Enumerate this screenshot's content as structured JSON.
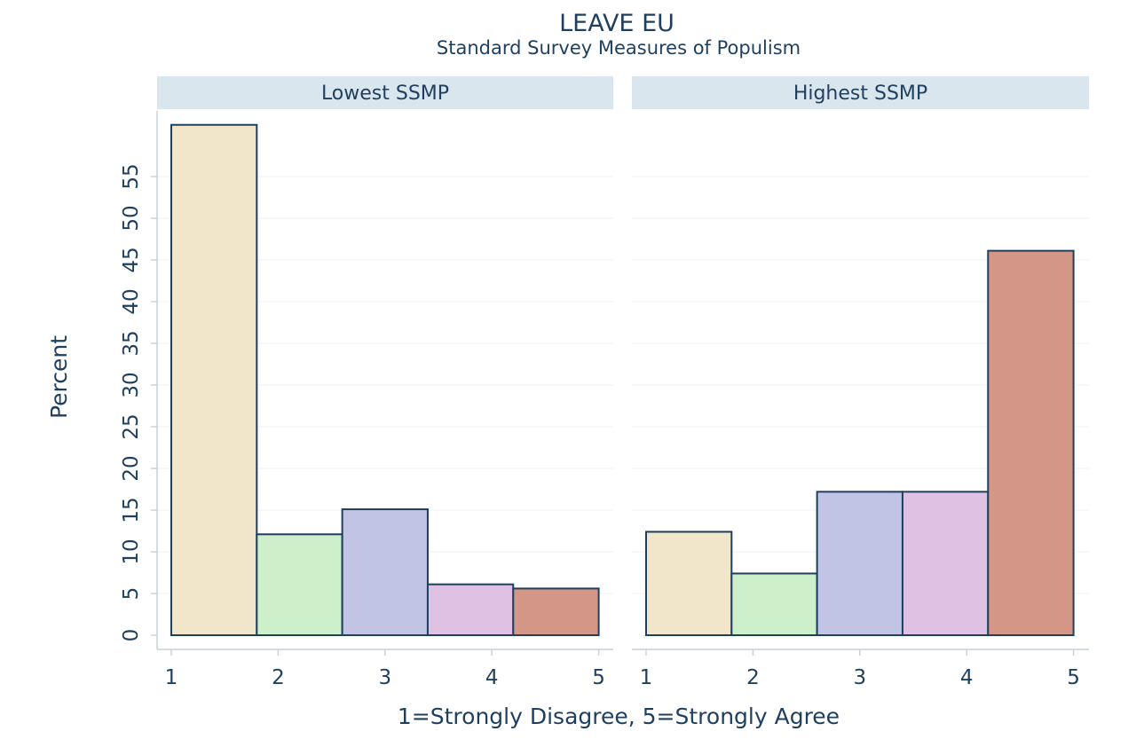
{
  "chart_data": {
    "type": "bar",
    "title": "LEAVE EU",
    "subtitle": "Standard Survey Measures of Populism",
    "xlabel": "1=Strongly Disagree, 5=Strongly Agree",
    "ylabel": "Percent",
    "ylim": [
      0,
      62
    ],
    "yticks": [
      0,
      5,
      10,
      15,
      20,
      25,
      30,
      35,
      40,
      45,
      50,
      55
    ],
    "xticks": [
      1,
      2,
      3,
      4,
      5
    ],
    "grid": true,
    "bar_colors": [
      "#f1e6c9",
      "#cdf0cb",
      "#c1c4e4",
      "#dfc1e3",
      "#d49686"
    ],
    "bar_edge_color": "#1f3f5f",
    "panel_header_color": "#d9e6ee",
    "panels": [
      {
        "name": "Lowest SSMP",
        "values": [
          61.2,
          12.1,
          15.1,
          6.1,
          5.6
        ]
      },
      {
        "name": "Highest SSMP",
        "values": [
          12.4,
          7.4,
          17.2,
          17.2,
          46.1
        ]
      }
    ]
  }
}
